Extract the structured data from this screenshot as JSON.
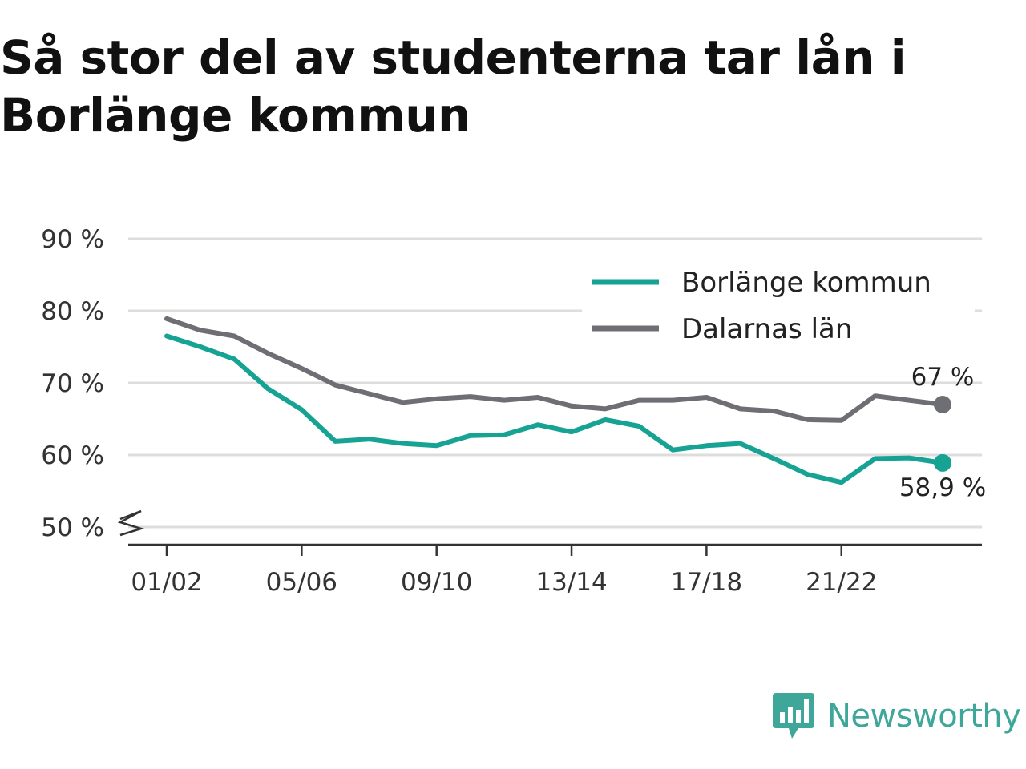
{
  "title": "Så stor del av studenterna tar lån i Borlänge kommun",
  "brand": {
    "name": "Newsworthy",
    "icon": "newsworthy-logo-icon",
    "color": "#3fa79a"
  },
  "chart_data": {
    "type": "line",
    "title": "Så stor del av studenterna tar lån i Borlänge kommun",
    "xlabel": "",
    "ylabel": "",
    "x": [
      "01/02",
      "02/03",
      "03/04",
      "04/05",
      "05/06",
      "06/07",
      "07/08",
      "08/09",
      "09/10",
      "10/11",
      "11/12",
      "12/13",
      "13/14",
      "14/15",
      "15/16",
      "16/17",
      "17/18",
      "18/19",
      "19/20",
      "20/21",
      "21/22",
      "22/23",
      "23/24",
      "24/25"
    ],
    "x_tick_labels": [
      "01/02",
      "05/06",
      "09/10",
      "13/14",
      "17/18",
      "21/22"
    ],
    "ylim": [
      50,
      90
    ],
    "y_ticks": [
      50,
      60,
      70,
      80,
      90
    ],
    "y_tick_labels": [
      "50 %",
      "60 %",
      "70 %",
      "80 %",
      "90 %"
    ],
    "axis_break": true,
    "grid": true,
    "legend": "top-right",
    "series": [
      {
        "name": "Borlänge kommun",
        "color": "#16a394",
        "values": [
          76.5,
          75.0,
          73.3,
          69.2,
          66.3,
          61.9,
          62.2,
          61.6,
          61.3,
          62.7,
          62.8,
          64.2,
          63.2,
          64.9,
          64.0,
          60.7,
          61.3,
          61.6,
          59.5,
          57.3,
          56.2,
          59.5,
          59.6,
          58.9
        ],
        "end_label": "58,9 %"
      },
      {
        "name": "Dalarnas län",
        "color": "#6e6e75",
        "values": [
          78.9,
          77.3,
          76.5,
          74.1,
          72.0,
          69.7,
          68.5,
          67.3,
          67.8,
          68.1,
          67.6,
          68.0,
          66.8,
          66.4,
          67.6,
          67.6,
          68.0,
          66.4,
          66.1,
          64.9,
          64.8,
          68.2,
          67.6,
          67.0
        ],
        "end_label": "67 %"
      }
    ]
  }
}
